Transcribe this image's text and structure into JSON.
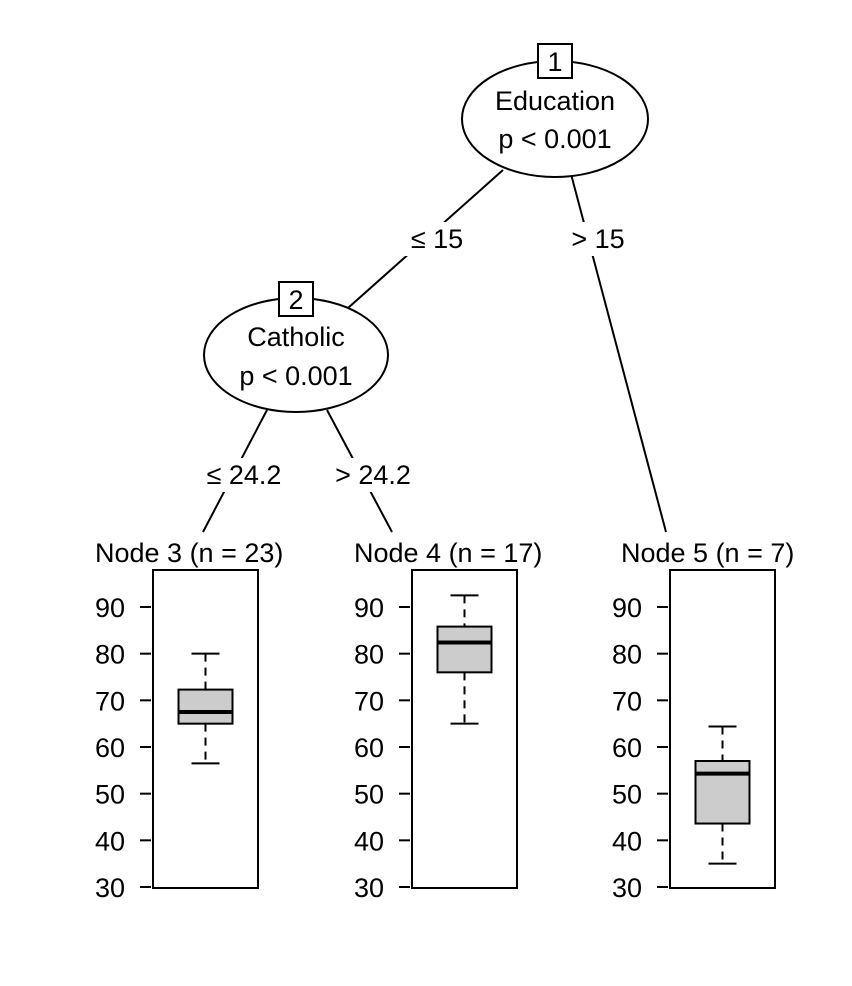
{
  "chart_data": {
    "type": "box",
    "tree": {
      "inner_nodes": [
        {
          "id": "1",
          "variable": "Education",
          "p_label": "p < 0.001"
        },
        {
          "id": "2",
          "variable": "Catholic",
          "p_label": "p < 0.001"
        }
      ],
      "edges": [
        {
          "from": "1",
          "to": "2",
          "label": "≤ 15"
        },
        {
          "from": "1",
          "to": "5",
          "label": "> 15"
        },
        {
          "from": "2",
          "to": "3",
          "label": "≤ 24.2"
        },
        {
          "from": "2",
          "to": "4",
          "label": "> 24.2"
        }
      ]
    },
    "panels": [
      {
        "id": "3",
        "title": "Node 3 (n = 23)",
        "min": 56.5,
        "q1": 65.0,
        "median": 67.5,
        "q3": 72.3,
        "max": 80.0
      },
      {
        "id": "4",
        "title": "Node 4 (n = 17)",
        "min": 65.0,
        "q1": 76.0,
        "median": 82.4,
        "q3": 85.8,
        "max": 92.5
      },
      {
        "id": "5",
        "title": "Node 5 (n = 7)",
        "min": 35.0,
        "q1": 43.6,
        "median": 54.3,
        "q3": 57.0,
        "max": 64.4
      }
    ],
    "y_ticks": [
      "30",
      "40",
      "50",
      "60",
      "70",
      "80",
      "90"
    ],
    "ylim": [
      30,
      92.5
    ],
    "colors": {
      "box_fill": "#cccccc",
      "line": "#000000"
    }
  }
}
